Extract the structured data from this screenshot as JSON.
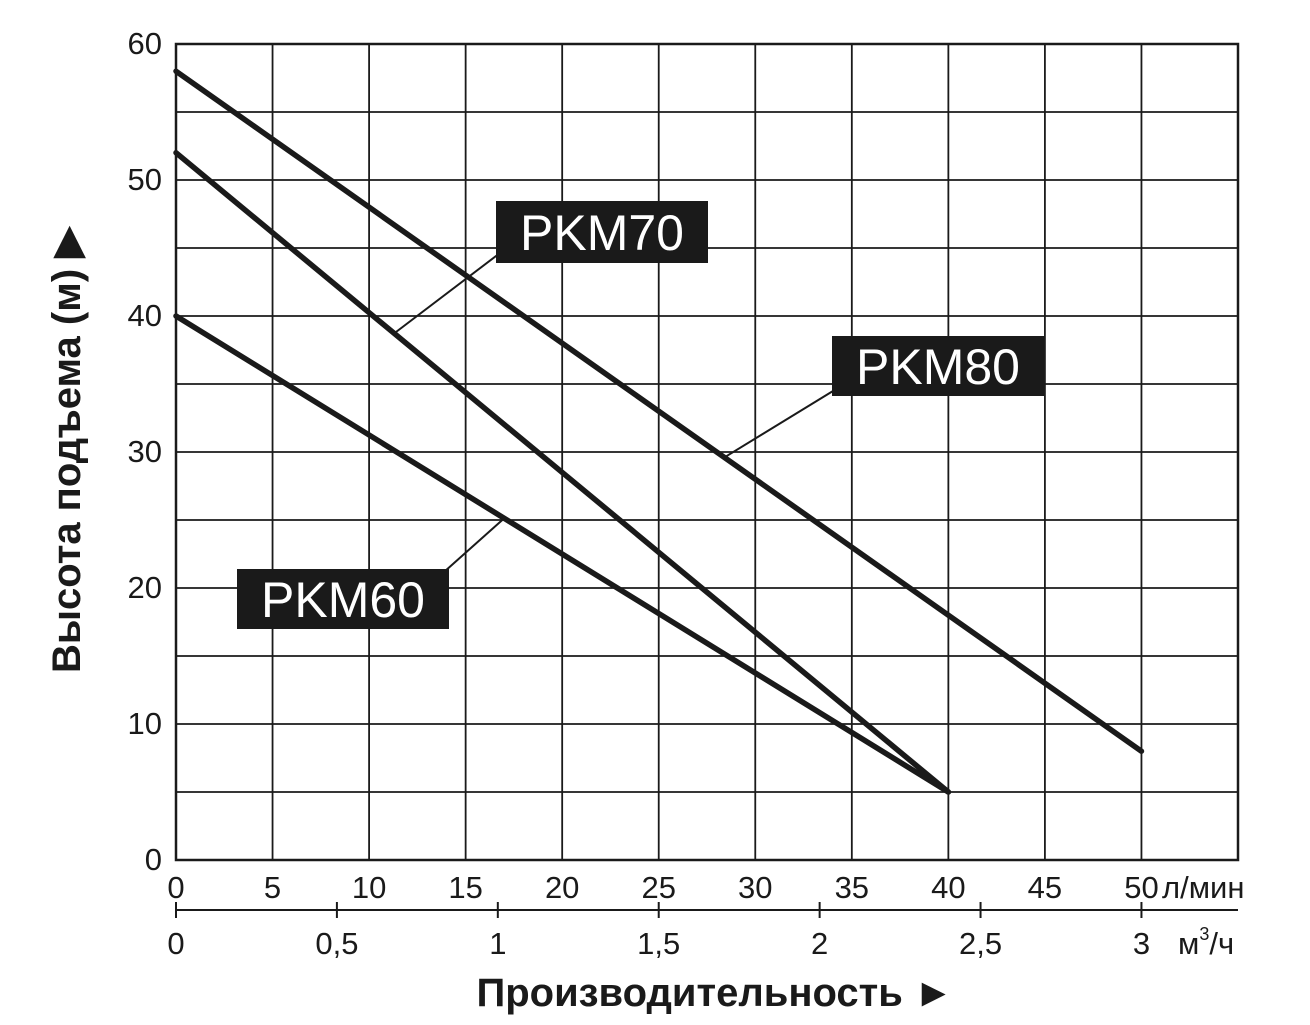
{
  "chart_data": {
    "type": "line",
    "ylabel": "Высота подъема (м) ▶",
    "xlabel": "Производительность ►",
    "x_unit": "л/мин",
    "x2_unit_base": "м",
    "x2_unit_sup": "3",
    "x2_unit_tail": "/ч",
    "ylim": [
      0,
      60
    ],
    "xlim": [
      0,
      55
    ],
    "yticks": [
      "0",
      "10",
      "20",
      "30",
      "40",
      "50",
      "60"
    ],
    "xticks": [
      "0",
      "5",
      "10",
      "15",
      "20",
      "25",
      "30",
      "35",
      "40",
      "45",
      "50"
    ],
    "x2ticks": [
      "0",
      "0,5",
      "1",
      "1,5",
      "2",
      "2,5",
      "3"
    ],
    "grid": true,
    "series": [
      {
        "name": "PKM60",
        "x": [
          0,
          40
        ],
        "y": [
          40,
          5
        ]
      },
      {
        "name": "PKM70",
        "x": [
          0,
          40
        ],
        "y": [
          52,
          5
        ]
      },
      {
        "name": "PKM80",
        "x": [
          0,
          50
        ],
        "y": [
          58,
          8
        ]
      }
    ],
    "colors": {
      "line": "#1a1a1a",
      "grid": "#1a1a1a",
      "label_bg": "#1a1a1a",
      "label_text": "#ffffff"
    }
  }
}
